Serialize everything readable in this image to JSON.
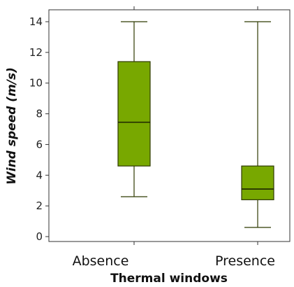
{
  "chart_data": {
    "type": "boxplot",
    "xlabel": "Thermal windows",
    "ylabel": "Wind speed (m/s)",
    "ylim": [
      0,
      14.8
    ],
    "yticks": [
      0,
      2,
      4,
      6,
      8,
      10,
      12,
      14
    ],
    "categories": [
      "Absence",
      "Presence"
    ],
    "boxes": [
      {
        "category": "Absence",
        "min": 2.6,
        "q1": 4.6,
        "median": 7.45,
        "q3": 11.4,
        "max": 14.0
      },
      {
        "category": "Presence",
        "min": 0.6,
        "q1": 2.4,
        "median": 3.1,
        "q3": 4.6,
        "max": 14.0
      }
    ],
    "box_fill": "#78a800",
    "box_stroke": "#2f3a00",
    "grid": false
  }
}
